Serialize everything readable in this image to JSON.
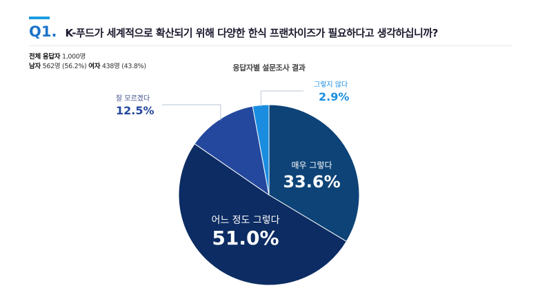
{
  "question": {
    "number": "Q1.",
    "text": "K-푸드가 세계적으로 확산되기 위해 다양한 한식 프랜차이즈가 필요하다고 생각하십니까?"
  },
  "respondents": {
    "total_label": "전체 응답자",
    "total_value": "1,000명",
    "male_label": "남자",
    "male_value": "562명 (56.2%)",
    "female_label": "여자",
    "female_value": "438명 (43.8%)"
  },
  "chart_data": {
    "type": "pie",
    "title": "응답자별 설문조사 결과",
    "slices": [
      {
        "label": "매우 그렇다",
        "value": 33.6,
        "display": "33.6%",
        "color": "#0d4377"
      },
      {
        "label": "어느 정도 그렇다",
        "value": 51.0,
        "display": "51.0%",
        "color": "#0c2c63"
      },
      {
        "label": "잘 모르겠다",
        "value": 12.5,
        "display": "12.5%",
        "color": "#24489d"
      },
      {
        "label": "그렇지 않다",
        "value": 2.9,
        "display": "2.9%",
        "color": "#1a8de0"
      }
    ],
    "start": "top, clockwise"
  }
}
